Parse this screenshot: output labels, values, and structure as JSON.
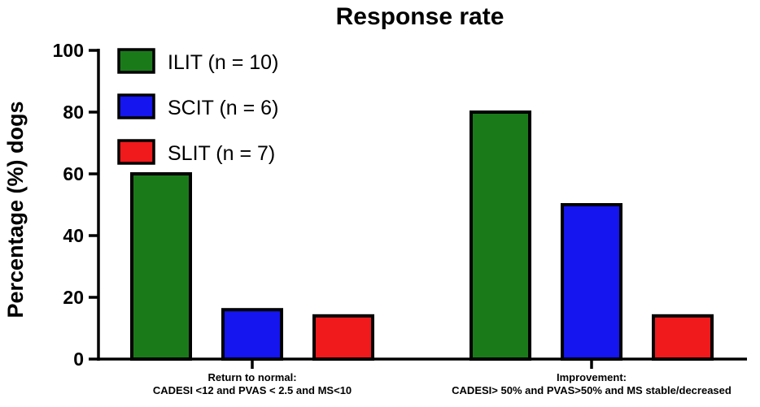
{
  "chart_data": {
    "type": "bar",
    "title": "Response rate",
    "ylabel": "Percentage (%) dogs",
    "xlabel": "",
    "ylim": [
      0,
      100
    ],
    "yticks": [
      0,
      20,
      40,
      60,
      80,
      100
    ],
    "categories": [
      [
        "Return to normal:",
        "CADESI <12 and PVAS < 2.5 and MS<10"
      ],
      [
        "Improvement:",
        "CADESI> 50% and PVAS>50% and MS stable/decreased"
      ]
    ],
    "series": [
      {
        "name": "ILIT (n = 10)",
        "color": "#1a7a1a",
        "values": [
          60,
          80
        ]
      },
      {
        "name": "SCIT (n = 6)",
        "color": "#1515f0",
        "values": [
          16,
          50
        ]
      },
      {
        "name": "SLIT (n = 7)",
        "color": "#f0191b",
        "values": [
          14,
          14
        ]
      }
    ],
    "legend_position": "top-left",
    "grid": false
  }
}
